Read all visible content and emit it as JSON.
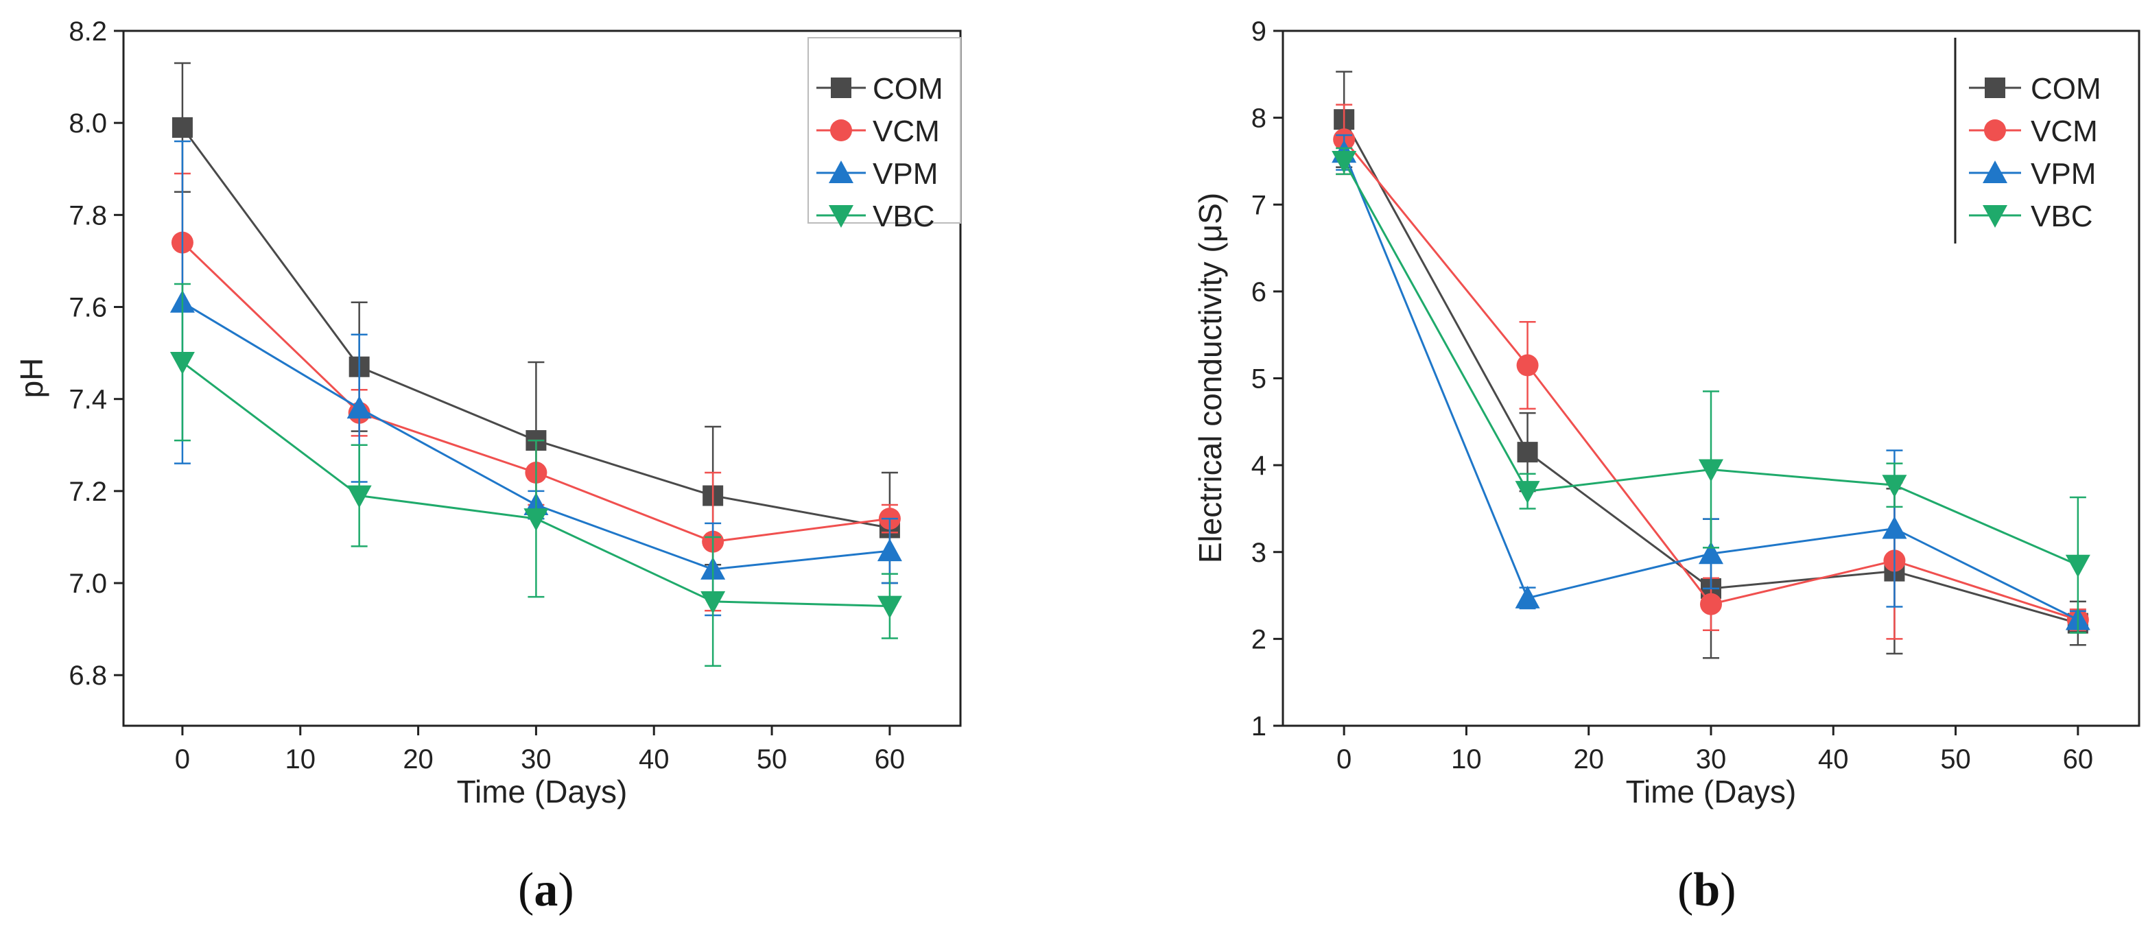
{
  "chart_data": [
    {
      "type": "line",
      "panel": "a",
      "caption": {
        "open": "(",
        "letter": "a",
        "close": ")"
      },
      "xlabel": "Time (Days)",
      "ylabel": "pH",
      "xlim": [
        -5,
        66
      ],
      "ylim": [
        6.69,
        8.2
      ],
      "xticks": [
        0,
        10,
        20,
        30,
        40,
        50,
        60
      ],
      "xtick_labels": [
        "0",
        "10",
        "20",
        "30",
        "40",
        "50",
        "60"
      ],
      "yticks": [
        6.8,
        7.0,
        7.2,
        7.4,
        7.6,
        7.8,
        8.0,
        8.2
      ],
      "ytick_labels": [
        "6.8",
        "7.0",
        "7.2",
        "7.4",
        "7.6",
        "7.8",
        "8.0",
        "8.2"
      ],
      "legend_position": "top-right",
      "x": [
        0,
        15,
        30,
        45,
        60
      ],
      "series": [
        {
          "name": "COM",
          "color": "#4a4a4a",
          "marker": "square",
          "values": [
            7.99,
            7.47,
            7.31,
            7.19,
            7.12
          ],
          "errors": [
            0.14,
            0.14,
            0.17,
            0.15,
            0.12
          ]
        },
        {
          "name": "VCM",
          "color": "#f0504f",
          "marker": "circle",
          "values": [
            7.74,
            7.37,
            7.24,
            7.09,
            7.14
          ],
          "errors": [
            0.15,
            0.05,
            0.07,
            0.15,
            0.03
          ]
        },
        {
          "name": "VPM",
          "color": "#1f77c9",
          "marker": "triangle-up",
          "values": [
            7.61,
            7.38,
            7.17,
            7.03,
            7.07
          ],
          "errors": [
            0.35,
            0.16,
            0.03,
            0.1,
            0.07
          ]
        },
        {
          "name": "VBC",
          "color": "#1faa6b",
          "marker": "triangle-down",
          "values": [
            7.48,
            7.19,
            7.14,
            6.96,
            6.95
          ],
          "errors": [
            0.17,
            0.11,
            0.17,
            0.14,
            0.07
          ]
        }
      ]
    },
    {
      "type": "line",
      "panel": "b",
      "caption": {
        "open": "(",
        "letter": "b",
        "close": ")"
      },
      "xlabel": "Time (Days)",
      "ylabel": "Electrical conductivity (μS)",
      "xlim": [
        -5,
        65
      ],
      "ylim": [
        1,
        9
      ],
      "xticks": [
        0,
        10,
        20,
        30,
        40,
        50,
        60
      ],
      "xtick_labels": [
        "0",
        "10",
        "20",
        "30",
        "40",
        "50",
        "60"
      ],
      "yticks": [
        1,
        2,
        3,
        4,
        5,
        6,
        7,
        8,
        9
      ],
      "ytick_labels": [
        "1",
        "2",
        "3",
        "4",
        "5",
        "6",
        "7",
        "8",
        "9"
      ],
      "legend_position": "top-right",
      "x": [
        0,
        15,
        30,
        45,
        60
      ],
      "series": [
        {
          "name": "COM",
          "color": "#4a4a4a",
          "marker": "square",
          "values": [
            7.98,
            4.15,
            2.58,
            2.78,
            2.18
          ],
          "errors": [
            0.55,
            0.45,
            0.8,
            0.95,
            0.25
          ]
        },
        {
          "name": "VCM",
          "color": "#f0504f",
          "marker": "circle",
          "values": [
            7.75,
            5.15,
            2.4,
            2.9,
            2.22
          ],
          "errors": [
            0.4,
            0.5,
            0.3,
            0.9,
            0.12
          ]
        },
        {
          "name": "VPM",
          "color": "#1f77c9",
          "marker": "triangle-up",
          "values": [
            7.6,
            2.47,
            2.98,
            3.27,
            2.22
          ],
          "errors": [
            0.2,
            0.12,
            0.4,
            0.9,
            0.1
          ]
        },
        {
          "name": "VBC",
          "color": "#1faa6b",
          "marker": "triangle-down",
          "values": [
            7.5,
            3.7,
            3.95,
            3.77,
            2.85
          ],
          "errors": [
            0.15,
            0.2,
            0.9,
            0.25,
            0.78
          ]
        }
      ]
    }
  ]
}
